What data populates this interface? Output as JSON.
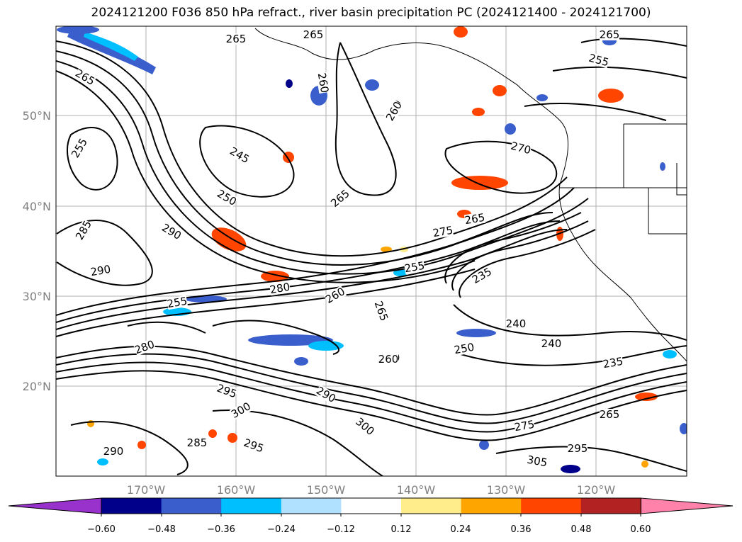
{
  "title": "2024121200 F036 850 hPa refract., river basin precipitation PC (2024121400 - 2024121700)",
  "map": {
    "lat_labels": [
      "50°N",
      "40°N",
      "30°N",
      "20°N"
    ],
    "lon_labels": [
      "170°W",
      "160°W",
      "150°W",
      "140°W",
      "130°W",
      "120°W"
    ],
    "contour_labels": [
      "265",
      "265",
      "265",
      "255",
      "265",
      "260",
      "245",
      "260",
      "270",
      "255",
      "250",
      "265",
      "275",
      "265",
      "285",
      "290",
      "290",
      "280",
      "255",
      "235",
      "255",
      "260",
      "265",
      "240",
      "240",
      "250",
      "260",
      "235",
      "280",
      "295",
      "290",
      "300",
      "275",
      "265",
      "295",
      "285",
      "295",
      "300",
      "305",
      "290",
      "260",
      "260"
    ]
  },
  "colorbar": {
    "ticks": [
      "−0.60",
      "−0.48",
      "−0.36",
      "−0.24",
      "−0.12",
      "0.12",
      "0.24",
      "0.36",
      "0.48",
      "0.60"
    ],
    "colors": [
      "#9932cc",
      "#00008b",
      "#3a5fcd",
      "#00bfff",
      "#b0e2ff",
      "#ffffff",
      "#ffec8b",
      "#ffa500",
      "#ff4500",
      "#b22222",
      "#ff82ab"
    ]
  }
}
